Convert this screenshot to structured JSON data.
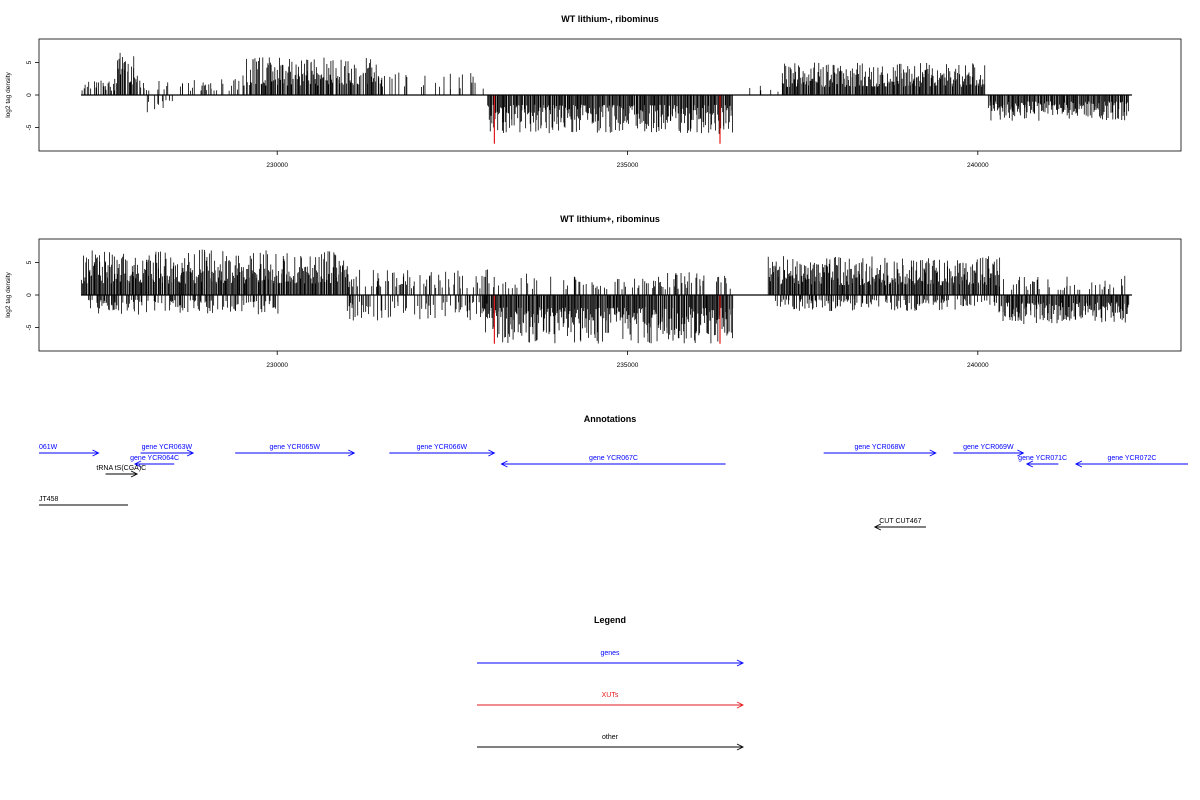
{
  "colors": {
    "positive": "#000000",
    "negative": "#000000",
    "highlight": "#e31a1c",
    "genes": "#0000ff",
    "xuts": "#e31a1c",
    "other": "#000000"
  },
  "chart_data": [
    {
      "type": "bar",
      "title": "WT lithium-, ribominus",
      "ylabel": "log2 tag density",
      "xlim": [
        226600,
        242900
      ],
      "ylim": [
        -8,
        8
      ],
      "xticks": [
        230000,
        235000,
        240000
      ],
      "xtick_labels": [
        "230000",
        "235000",
        "240000"
      ],
      "yticks": [
        5,
        0,
        -5
      ],
      "ytick_labels": [
        "5",
        "0",
        "-5"
      ],
      "baseline": {
        "x_start": 227200,
        "x_end": 242200
      },
      "segments": [
        {
          "start": 227200,
          "end": 227700,
          "dir": 1,
          "density": 0.5,
          "max": 2.5,
          "seed": 11
        },
        {
          "start": 227700,
          "end": 228000,
          "dir": 1,
          "density": 0.9,
          "max": 6.5,
          "seed": 12
        },
        {
          "start": 228000,
          "end": 229500,
          "dir": 1,
          "density": 0.3,
          "max": 2.5,
          "seed": 13
        },
        {
          "start": 228100,
          "end": 228500,
          "dir": -1,
          "density": 0.3,
          "max": 2.8,
          "seed": 14
        },
        {
          "start": 229500,
          "end": 231500,
          "dir": 1,
          "density": 0.9,
          "max": 5.8,
          "seed": 15
        },
        {
          "start": 231500,
          "end": 233000,
          "dir": 1,
          "density": 0.15,
          "max": 3.5,
          "seed": 16
        },
        {
          "start": 233000,
          "end": 236500,
          "dir": -1,
          "density": 1.0,
          "max": 6.0,
          "seed": 17
        },
        {
          "start": 236500,
          "end": 237200,
          "dir": 1,
          "density": 0.1,
          "max": 1.5,
          "seed": 18
        },
        {
          "start": 237200,
          "end": 240100,
          "dir": 1,
          "density": 1.0,
          "max": 5.0,
          "seed": 19
        },
        {
          "start": 240150,
          "end": 242150,
          "dir": -1,
          "density": 1.0,
          "max": 4.0,
          "seed": 20
        }
      ],
      "highlights": [
        {
          "x": 233100,
          "y": -7.5
        },
        {
          "x": 236320,
          "y": -7.5
        }
      ]
    },
    {
      "type": "bar",
      "title": "WT lithium+, ribominus",
      "ylabel": "log2 tag density",
      "xlim": [
        226600,
        242900
      ],
      "ylim": [
        -8,
        8
      ],
      "xticks": [
        230000,
        235000,
        240000
      ],
      "xtick_labels": [
        "230000",
        "235000",
        "240000"
      ],
      "yticks": [
        5,
        0,
        -5
      ],
      "ytick_labels": [
        "5",
        "0",
        "-5"
      ],
      "baseline": {
        "x_start": 227200,
        "x_end": 242200
      },
      "segments": [
        {
          "start": 227200,
          "end": 231000,
          "dir": 1,
          "density": 1.0,
          "max": 7.0,
          "seed": 31
        },
        {
          "start": 227300,
          "end": 230000,
          "dir": -1,
          "density": 0.5,
          "max": 3.0,
          "seed": 32
        },
        {
          "start": 231000,
          "end": 233000,
          "dir": 1,
          "density": 0.35,
          "max": 4.0,
          "seed": 33
        },
        {
          "start": 231000,
          "end": 233000,
          "dir": -1,
          "density": 0.4,
          "max": 4.0,
          "seed": 34
        },
        {
          "start": 232900,
          "end": 236500,
          "dir": -1,
          "density": 1.0,
          "max": 7.5,
          "seed": 35
        },
        {
          "start": 233000,
          "end": 236500,
          "dir": 1,
          "density": 0.3,
          "max": 3.5,
          "seed": 36
        },
        {
          "start": 237000,
          "end": 240300,
          "dir": 1,
          "density": 1.0,
          "max": 6.0,
          "seed": 37
        },
        {
          "start": 237000,
          "end": 240300,
          "dir": -1,
          "density": 0.45,
          "max": 2.5,
          "seed": 38
        },
        {
          "start": 240300,
          "end": 242150,
          "dir": -1,
          "density": 1.0,
          "max": 4.5,
          "seed": 39
        },
        {
          "start": 240300,
          "end": 242150,
          "dir": 1,
          "density": 0.25,
          "max": 3.0,
          "seed": 40
        }
      ],
      "highlights": [
        {
          "x": 233100,
          "y": -7.5
        },
        {
          "x": 236320,
          "y": -7.5
        }
      ]
    }
  ],
  "annotations": {
    "title": "Annotations",
    "features": [
      {
        "label": "061W",
        "start": 226600,
        "end": 227450,
        "strand": "+",
        "row": 0,
        "class": "gene",
        "label_align": "left"
      },
      {
        "label": "gene YCR063W",
        "start": 228050,
        "end": 228800,
        "strand": "+",
        "row": 0,
        "class": "gene"
      },
      {
        "label": "gene YCR065W",
        "start": 229400,
        "end": 231100,
        "strand": "+",
        "row": 0,
        "class": "gene"
      },
      {
        "label": "gene YCR066W",
        "start": 231600,
        "end": 233100,
        "strand": "+",
        "row": 0,
        "class": "gene"
      },
      {
        "label": "gene YCR068W",
        "start": 237800,
        "end": 239400,
        "strand": "+",
        "row": 0,
        "class": "gene"
      },
      {
        "label": "gene YCR069W",
        "start": 239650,
        "end": 240650,
        "strand": "+",
        "row": 0,
        "class": "gene"
      },
      {
        "label": "gene YCR064C",
        "start": 227970,
        "end": 228530,
        "strand": "-",
        "row": 1,
        "class": "gene"
      },
      {
        "label": "gene YCR067C",
        "start": 233200,
        "end": 236400,
        "strand": "-",
        "row": 1,
        "class": "gene"
      },
      {
        "label": "gene YCR071C",
        "start": 240700,
        "end": 241150,
        "strand": "-",
        "row": 1,
        "class": "gene"
      },
      {
        "label": "gene YCR072C",
        "start": 241400,
        "end": 243000,
        "strand": "-",
        "row": 1,
        "class": "gene"
      },
      {
        "label": "tRNA tS(CGA)C",
        "start": 227550,
        "end": 228000,
        "strand": "+",
        "row": 2,
        "class": "other"
      },
      {
        "label": "JT458",
        "start": 226600,
        "end": 227870,
        "strand": "none",
        "row": 3,
        "class": "other",
        "label_align": "left"
      },
      {
        "label": "CUT CUT467",
        "start": 238530,
        "end": 239260,
        "strand": "-",
        "row": 4,
        "class": "other"
      }
    ]
  },
  "legend": {
    "title": "Legend",
    "entries": [
      {
        "label": "genes",
        "class": "gene"
      },
      {
        "label": "XUTs",
        "class": "xut"
      },
      {
        "label": "other",
        "class": "other"
      }
    ]
  }
}
